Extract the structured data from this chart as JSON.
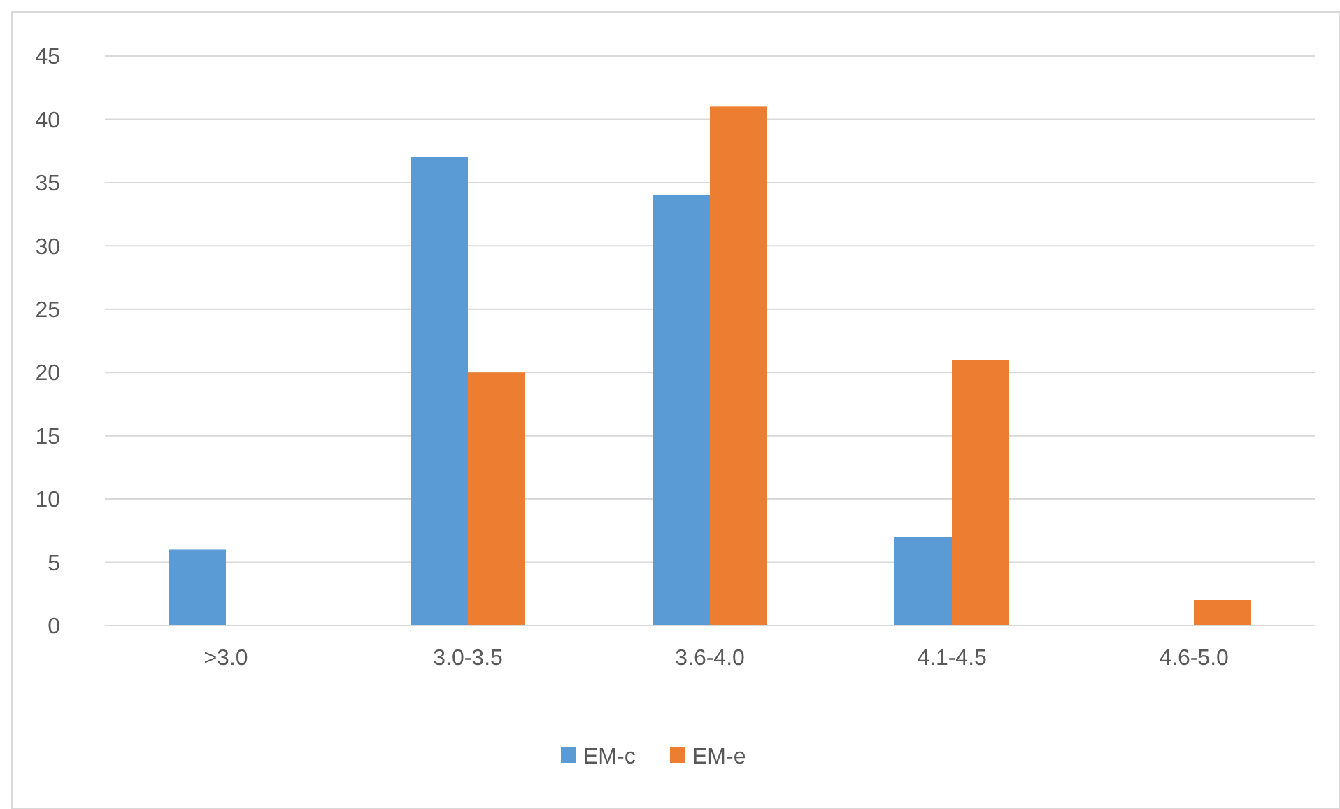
{
  "chart_data": {
    "type": "bar",
    "categories": [
      ">3.0",
      "3.0-3.5",
      "3.6-4.0",
      "4.1-4.5",
      "4.6-5.0"
    ],
    "series": [
      {
        "name": "EM-c",
        "color": "#5b9bd5",
        "values": [
          6,
          37,
          34,
          7,
          0
        ]
      },
      {
        "name": "EM-e",
        "color": "#ed7d31",
        "values": [
          0,
          20,
          41,
          21,
          2
        ]
      }
    ],
    "ylim": [
      0,
      45
    ],
    "yticks": [
      0,
      5,
      10,
      15,
      20,
      25,
      30,
      35,
      40,
      45
    ],
    "grid": "y",
    "legend": "bottom"
  }
}
